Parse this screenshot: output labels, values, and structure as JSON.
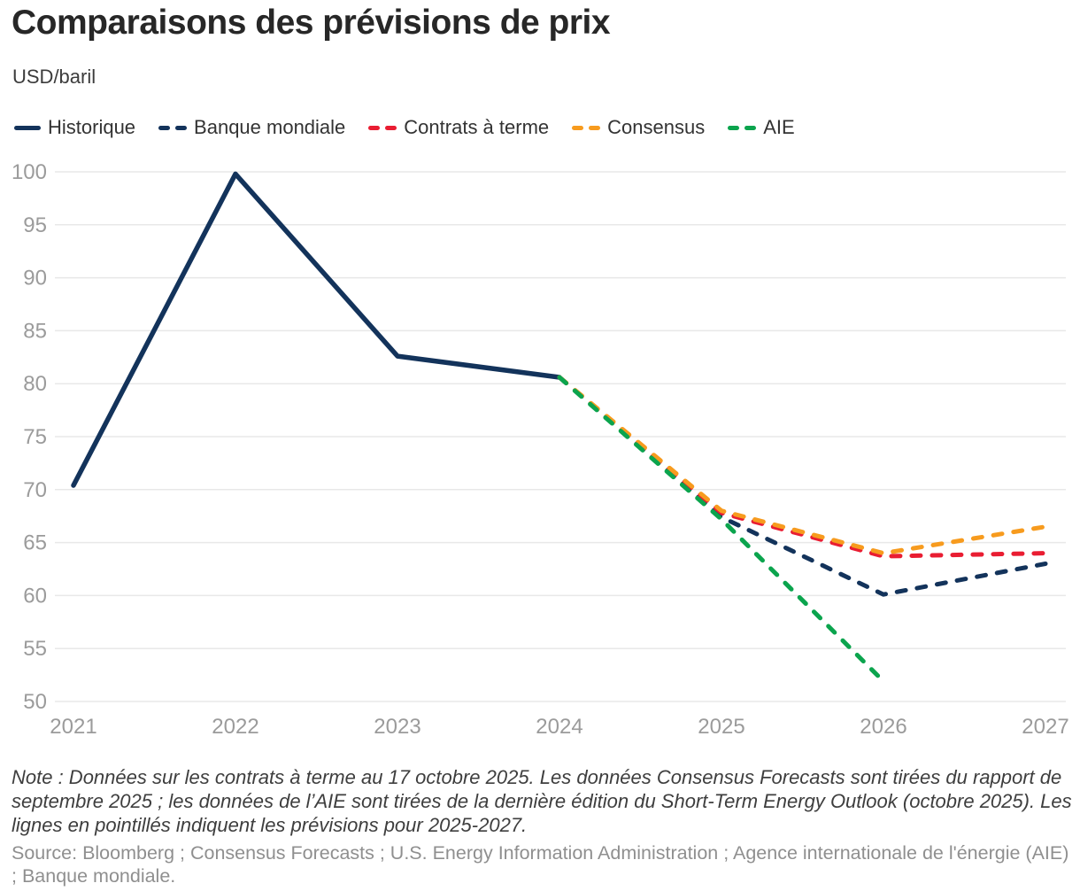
{
  "header": {
    "title": "Comparaisons des prévisions de prix",
    "unit": "USD/baril"
  },
  "note": "Note : Données sur les contrats à terme au 17 octobre 2025. Les données Consensus Forecasts sont tirées du rapport de septembre 2025 ; les données de l’AIE sont tirées de la dernière édition du Short-Term Energy Outlook (octobre 2025). Les lignes en pointillés indiquent les prévisions pour 2025-2027.",
  "source": "Source: Bloomberg ; Consensus Forecasts ; U.S. Energy Information Administration ; Agence internationale de l'énergie (AIE) ; Banque mondiale.",
  "chart_data": {
    "type": "line",
    "title": "Comparaisons des prévisions de prix",
    "ylabel": "USD/baril",
    "xlabel": "",
    "ylim": [
      50,
      100
    ],
    "y_ticks": [
      50,
      55,
      60,
      65,
      70,
      75,
      80,
      85,
      90,
      95,
      100
    ],
    "x_ticks": [
      2021,
      2022,
      2023,
      2024,
      2025,
      2026,
      2027
    ],
    "grid": "horizontal",
    "legend_position": "top",
    "colors": {
      "navy": "#13335B",
      "red": "#E91D32",
      "orange": "#F79B1E",
      "green": "#0BA44D",
      "gridline": "#E8E8E8",
      "tick_text": "#9B9B9B"
    },
    "series": [
      {
        "name": "Historique",
        "color": "#13335B",
        "dash": "solid",
        "x": [
          2021,
          2022,
          2023,
          2024
        ],
        "values": [
          70.4,
          99.8,
          82.6,
          80.6
        ]
      },
      {
        "name": "Banque mondiale",
        "color": "#13335B",
        "dash": "dashed",
        "x": [
          2024,
          2025,
          2026,
          2027
        ],
        "values": [
          80.6,
          67.4,
          60.1,
          63.0
        ]
      },
      {
        "name": "Contrats à terme",
        "color": "#E91D32",
        "dash": "dashed",
        "x": [
          2024,
          2025,
          2026,
          2027
        ],
        "values": [
          80.6,
          67.8,
          63.7,
          64.0
        ]
      },
      {
        "name": "Consensus",
        "color": "#F79B1E",
        "dash": "dashed",
        "x": [
          2024,
          2025,
          2026,
          2027
        ],
        "values": [
          80.6,
          68.0,
          64.0,
          66.5
        ]
      },
      {
        "name": "AIE",
        "color": "#0BA44D",
        "dash": "dashed",
        "x": [
          2024,
          2025,
          2026
        ],
        "values": [
          80.6,
          67.2,
          51.9
        ]
      }
    ]
  }
}
